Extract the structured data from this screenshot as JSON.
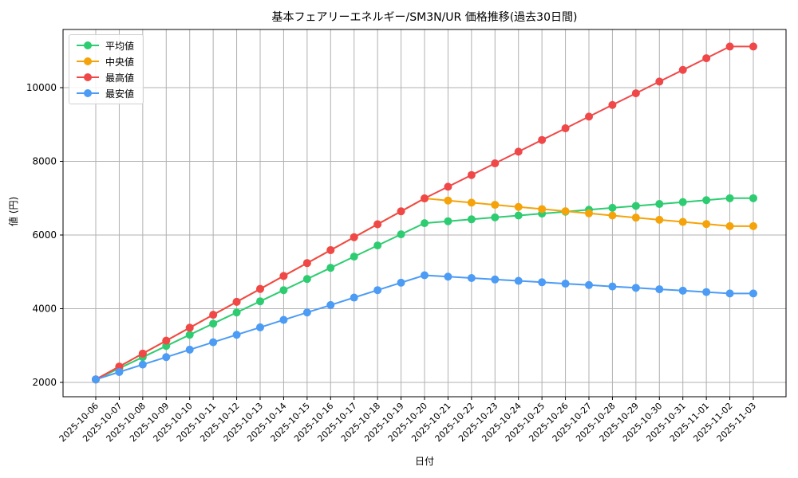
{
  "chart_data": {
    "type": "line",
    "title": "基本フェアリーエネルギー/SM3N/UR 価格推移(過去30日間)",
    "xlabel": "日付",
    "ylabel": "値 (円)",
    "ylim": [
      1650,
      11550
    ],
    "yticks": [
      2000,
      4000,
      6000,
      8000,
      10000
    ],
    "grid": true,
    "legend_position": "upper left",
    "categories": [
      "2025-10-06",
      "2025-10-07",
      "2025-10-08",
      "2025-10-09",
      "2025-10-10",
      "2025-10-11",
      "2025-10-12",
      "2025-10-13",
      "2025-10-14",
      "2025-10-15",
      "2025-10-16",
      "2025-10-17",
      "2025-10-18",
      "2025-10-19",
      "2025-10-20",
      "2025-10-21",
      "2025-10-22",
      "2025-10-23",
      "2025-10-24",
      "2025-10-25",
      "2025-10-26",
      "2025-10-27",
      "2025-10-28",
      "2025-10-29",
      "2025-10-30",
      "2025-10-31",
      "2025-11-01",
      "2025-11-02",
      "2025-11-03"
    ],
    "series": [
      {
        "name": "平均値",
        "color": "#2ecc71",
        "values": [
          2080,
          2383,
          2686,
          2989,
          3292,
          3595,
          3898,
          4201,
          4504,
          4807,
          5110,
          5413,
          5716,
          6019,
          6322,
          6374,
          6426,
          6478,
          6530,
          6582,
          6634,
          6686,
          6738,
          6790,
          6842,
          6894,
          6946,
          6998,
          6998
        ]
      },
      {
        "name": "中央値",
        "color": "#f5a30a",
        "values": [
          2080,
          2431,
          2782,
          3133,
          3484,
          3835,
          4186,
          4537,
          4888,
          5239,
          5590,
          5941,
          6292,
          6643,
          6994,
          6936,
          6878,
          6820,
          6762,
          6704,
          6646,
          6588,
          6530,
          6472,
          6414,
          6356,
          6298,
          6240,
          6240
        ]
      },
      {
        "name": "最高値",
        "color": "#f04848",
        "values": [
          2080,
          2431,
          2782,
          3133,
          3484,
          3835,
          4186,
          4537,
          4888,
          5239,
          5590,
          5941,
          6292,
          6643,
          6994,
          7311,
          7628,
          7945,
          8262,
          8579,
          8896,
          9213,
          9530,
          9847,
          10164,
          10481,
          10798,
          11115,
          11115
        ]
      },
      {
        "name": "最安値",
        "color": "#4c9bf5",
        "values": [
          2080,
          2282,
          2484,
          2686,
          2888,
          3090,
          3292,
          3494,
          3696,
          3898,
          4100,
          4302,
          4504,
          4706,
          4908,
          4870,
          4832,
          4794,
          4756,
          4718,
          4680,
          4642,
          4604,
          4566,
          4528,
          4490,
          4452,
          4414,
          4414
        ]
      }
    ]
  }
}
